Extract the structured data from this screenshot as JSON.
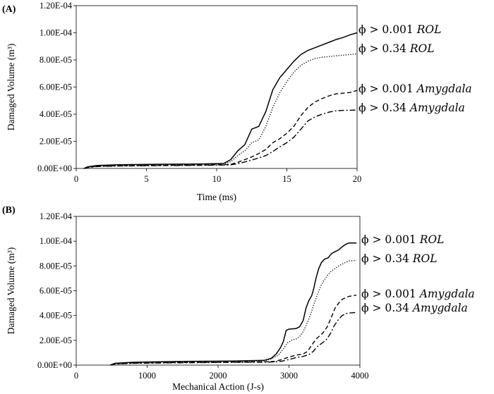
{
  "chart_data": [
    {
      "type": "line",
      "panel_label": "(A)",
      "xlabel": "Time (ms)",
      "ylabel": "Damaged Volume (m³)",
      "xlim": [
        0,
        20
      ],
      "ylim": [
        0,
        0.00012
      ],
      "x_ticks": [
        "0",
        "5",
        "10",
        "15",
        "20"
      ],
      "x_tick_values": [
        0,
        5,
        10,
        15,
        20
      ],
      "y_ticks": [
        "0.00E+00",
        "2.00E-05",
        "4.00E-05",
        "6.00E-05",
        "8.00E-05",
        "1.00E-04",
        "1.20E-04"
      ],
      "y_tick_values": [
        0,
        2e-05,
        4e-05,
        6e-05,
        8e-05,
        0.0001,
        0.00012
      ],
      "grid": false,
      "series": [
        {
          "name_prefix": "ϕ > 0.001 ",
          "name_italic": "ROL",
          "dash": "solid",
          "points": [
            [
              0.55,
              0
            ],
            [
              0.8,
              1.2e-06
            ],
            [
              1.5,
              2.2e-06
            ],
            [
              3,
              2.7e-06
            ],
            [
              6,
              3.1e-06
            ],
            [
              9,
              3.3e-06
            ],
            [
              10.5,
              3.7e-06
            ],
            [
              11,
              6.5e-06
            ],
            [
              11.5,
              1.3e-05
            ],
            [
              12,
              1.75e-05
            ],
            [
              12.5,
              2.9e-05
            ],
            [
              13,
              3.1e-05
            ],
            [
              13.5,
              4.2e-05
            ],
            [
              14,
              5.8e-05
            ],
            [
              14.5,
              6.7e-05
            ],
            [
              15,
              7.3e-05
            ],
            [
              15.5,
              7.9e-05
            ],
            [
              16,
              8.4e-05
            ],
            [
              16.5,
              8.7e-05
            ],
            [
              17,
              8.9e-05
            ],
            [
              17.5,
              9.1e-05
            ],
            [
              18,
              9.3e-05
            ],
            [
              18.5,
              9.5e-05
            ],
            [
              19,
              9.65e-05
            ],
            [
              19.5,
              9.85e-05
            ],
            [
              20,
              0.0001
            ]
          ]
        },
        {
          "name_prefix": "ϕ > 0.34 ",
          "name_italic": "ROL",
          "dash": "dotted",
          "points": [
            [
              0.55,
              0
            ],
            [
              0.8,
              1e-06
            ],
            [
              1.5,
              2e-06
            ],
            [
              3,
              2.5e-06
            ],
            [
              6,
              2.9e-06
            ],
            [
              9,
              3.1e-06
            ],
            [
              10.5,
              3.4e-06
            ],
            [
              11,
              5e-06
            ],
            [
              11.5,
              9.5e-06
            ],
            [
              12,
              1.3e-05
            ],
            [
              12.5,
              1.9e-05
            ],
            [
              13,
              2.1e-05
            ],
            [
              13.5,
              3.1e-05
            ],
            [
              14,
              4.5e-05
            ],
            [
              14.5,
              5.6e-05
            ],
            [
              15,
              6.4e-05
            ],
            [
              15.5,
              7.1e-05
            ],
            [
              16,
              7.6e-05
            ],
            [
              16.5,
              7.9e-05
            ],
            [
              17,
              8.1e-05
            ],
            [
              17.5,
              8.2e-05
            ],
            [
              18,
              8.25e-05
            ],
            [
              19,
              8.35e-05
            ],
            [
              20,
              8.45e-05
            ]
          ]
        },
        {
          "name_prefix": "ϕ > 0.001 ",
          "name_italic": "Amygdala",
          "dash": "dashed",
          "points": [
            [
              0.55,
              0
            ],
            [
              0.8,
              8e-07
            ],
            [
              1.5,
              1.6e-06
            ],
            [
              3,
              2e-06
            ],
            [
              6,
              2.3e-06
            ],
            [
              9,
              2.5e-06
            ],
            [
              10.5,
              2.8e-06
            ],
            [
              11,
              3e-06
            ],
            [
              11.5,
              4.5e-06
            ],
            [
              12,
              6.5e-06
            ],
            [
              12.5,
              8.5e-06
            ],
            [
              13,
              1.1e-05
            ],
            [
              13.5,
              1.4e-05
            ],
            [
              14,
              1.9e-05
            ],
            [
              14.5,
              2.2e-05
            ],
            [
              15,
              2.6e-05
            ],
            [
              15.5,
              3.1e-05
            ],
            [
              16,
              3.9e-05
            ],
            [
              16.5,
              4.5e-05
            ],
            [
              17,
              4.9e-05
            ],
            [
              17.5,
              5.15e-05
            ],
            [
              18,
              5.35e-05
            ],
            [
              18.5,
              5.5e-05
            ],
            [
              19,
              5.55e-05
            ],
            [
              19.5,
              5.6e-05
            ],
            [
              20,
              5.75e-05
            ]
          ]
        },
        {
          "name_prefix": "ϕ > 0.34 ",
          "name_italic": "Amygdala",
          "dash": "dashdot",
          "points": [
            [
              0.55,
              0
            ],
            [
              0.8,
              7e-07
            ],
            [
              1.5,
              1.4e-06
            ],
            [
              3,
              1.8e-06
            ],
            [
              6,
              2.1e-06
            ],
            [
              9,
              2.3e-06
            ],
            [
              10.5,
              2.5e-06
            ],
            [
              11,
              2.7e-06
            ],
            [
              11.5,
              3.5e-06
            ],
            [
              12,
              4.8e-06
            ],
            [
              12.5,
              6.2e-06
            ],
            [
              13,
              7.8e-06
            ],
            [
              13.5,
              9.5e-06
            ],
            [
              14,
              1.25e-05
            ],
            [
              14.5,
              1.6e-05
            ],
            [
              15,
              1.9e-05
            ],
            [
              15.5,
              2.3e-05
            ],
            [
              16,
              2.9e-05
            ],
            [
              16.5,
              3.5e-05
            ],
            [
              17,
              3.8e-05
            ],
            [
              17.5,
              4e-05
            ],
            [
              18,
              4.15e-05
            ],
            [
              18.5,
              4.25e-05
            ],
            [
              19,
              4.28e-05
            ],
            [
              20,
              4.3e-05
            ]
          ]
        }
      ]
    },
    {
      "type": "line",
      "panel_label": "(B)",
      "xlabel": "Mechanical Action (J-s)",
      "ylabel": "Damaged Volume (m³)",
      "xlim": [
        0,
        4000
      ],
      "ylim": [
        0,
        0.00012
      ],
      "x_ticks": [
        "0",
        "1000",
        "2000",
        "3000",
        "4000"
      ],
      "x_tick_values": [
        0,
        1000,
        2000,
        3000,
        4000
      ],
      "y_ticks": [
        "0.00E+00",
        "2.00E-05",
        "4.00E-05",
        "6.00E-05",
        "8.00E-05",
        "1.00E-04",
        "1.20E-04"
      ],
      "y_tick_values": [
        0,
        2e-05,
        4e-05,
        6e-05,
        8e-05,
        0.0001,
        0.00012
      ],
      "grid": false,
      "series": [
        {
          "name_prefix": "ϕ > 0.001 ",
          "name_italic": "ROL",
          "dash": "solid",
          "points": [
            [
              480,
              0
            ],
            [
              550,
              1.5e-06
            ],
            [
              800,
              2.3e-06
            ],
            [
              1500,
              3e-06
            ],
            [
              2200,
              3.3e-06
            ],
            [
              2650,
              3.8e-06
            ],
            [
              2750,
              5.5e-06
            ],
            [
              2820,
              9e-06
            ],
            [
              2880,
              1.4e-05
            ],
            [
              2920,
              1.9e-05
            ],
            [
              2960,
              2.8e-05
            ],
            [
              3000,
              2.9e-05
            ],
            [
              3100,
              2.95e-05
            ],
            [
              3150,
              3.1e-05
            ],
            [
              3200,
              3.6e-05
            ],
            [
              3240,
              4.6e-05
            ],
            [
              3280,
              5.2e-05
            ],
            [
              3320,
              5.6e-05
            ],
            [
              3350,
              6.2e-05
            ],
            [
              3380,
              7e-05
            ],
            [
              3420,
              7.8e-05
            ],
            [
              3460,
              8.3e-05
            ],
            [
              3500,
              8.55e-05
            ],
            [
              3550,
              8.65e-05
            ],
            [
              3600,
              9e-05
            ],
            [
              3650,
              9.15e-05
            ],
            [
              3700,
              9.3e-05
            ],
            [
              3750,
              9.55e-05
            ],
            [
              3800,
              9.75e-05
            ],
            [
              3850,
              9.85e-05
            ],
            [
              3950,
              9.85e-05
            ]
          ]
        },
        {
          "name_prefix": "ϕ > 0.34 ",
          "name_italic": "ROL",
          "dash": "dotted",
          "points": [
            [
              480,
              0
            ],
            [
              550,
              1.3e-06
            ],
            [
              800,
              2.1e-06
            ],
            [
              1500,
              2.8e-06
            ],
            [
              2200,
              3e-06
            ],
            [
              2650,
              3.4e-06
            ],
            [
              2750,
              5e-06
            ],
            [
              2850,
              8e-06
            ],
            [
              2920,
              1.3e-05
            ],
            [
              2980,
              1.8e-05
            ],
            [
              3050,
              2.05e-05
            ],
            [
              3100,
              2.1e-05
            ],
            [
              3150,
              2.3e-05
            ],
            [
              3200,
              2.7e-05
            ],
            [
              3250,
              3.3e-05
            ],
            [
              3300,
              4e-05
            ],
            [
              3350,
              4.9e-05
            ],
            [
              3400,
              5.7e-05
            ],
            [
              3450,
              6.4e-05
            ],
            [
              3500,
              6.9e-05
            ],
            [
              3550,
              7.3e-05
            ],
            [
              3600,
              7.6e-05
            ],
            [
              3650,
              7.8e-05
            ],
            [
              3700,
              8e-05
            ],
            [
              3750,
              8.15e-05
            ],
            [
              3800,
              8.3e-05
            ],
            [
              3850,
              8.4e-05
            ],
            [
              3950,
              8.45e-05
            ]
          ]
        },
        {
          "name_prefix": "ϕ > 0.001 ",
          "name_italic": "Amygdala",
          "dash": "dashed",
          "points": [
            [
              480,
              0
            ],
            [
              550,
              1e-06
            ],
            [
              800,
              1.7e-06
            ],
            [
              1500,
              2.1e-06
            ],
            [
              2200,
              2.4e-06
            ],
            [
              2650,
              2.7e-06
            ],
            [
              2800,
              3e-06
            ],
            [
              2900,
              4.5e-06
            ],
            [
              3000,
              6.5e-06
            ],
            [
              3100,
              8e-06
            ],
            [
              3200,
              9e-06
            ],
            [
              3260,
              1.1e-05
            ],
            [
              3320,
              1.6e-05
            ],
            [
              3380,
              2.1e-05
            ],
            [
              3420,
              2.3e-05
            ],
            [
              3480,
              2.6e-05
            ],
            [
              3540,
              3.1e-05
            ],
            [
              3600,
              3.9e-05
            ],
            [
              3650,
              4.6e-05
            ],
            [
              3700,
              5e-05
            ],
            [
              3750,
              5.3e-05
            ],
            [
              3800,
              5.45e-05
            ],
            [
              3850,
              5.55e-05
            ],
            [
              3950,
              5.65e-05
            ]
          ]
        },
        {
          "name_prefix": "ϕ > 0.34 ",
          "name_italic": "Amygdala",
          "dash": "dashdot",
          "points": [
            [
              480,
              0
            ],
            [
              550,
              9e-07
            ],
            [
              800,
              1.5e-06
            ],
            [
              1500,
              1.9e-06
            ],
            [
              2200,
              2.2e-06
            ],
            [
              2650,
              2.4e-06
            ],
            [
              2800,
              2.6e-06
            ],
            [
              2900,
              3.2e-06
            ],
            [
              3000,
              4.5e-06
            ],
            [
              3100,
              6e-06
            ],
            [
              3200,
              7e-06
            ],
            [
              3280,
              8.5e-06
            ],
            [
              3340,
              1.1e-05
            ],
            [
              3400,
              1.5e-05
            ],
            [
              3460,
              1.75e-05
            ],
            [
              3520,
              2e-05
            ],
            [
              3580,
              2.5e-05
            ],
            [
              3640,
              3.2e-05
            ],
            [
              3700,
              3.7e-05
            ],
            [
              3750,
              4e-05
            ],
            [
              3800,
              4.15e-05
            ],
            [
              3850,
              4.2e-05
            ],
            [
              3950,
              4.25e-05
            ]
          ]
        }
      ]
    }
  ]
}
